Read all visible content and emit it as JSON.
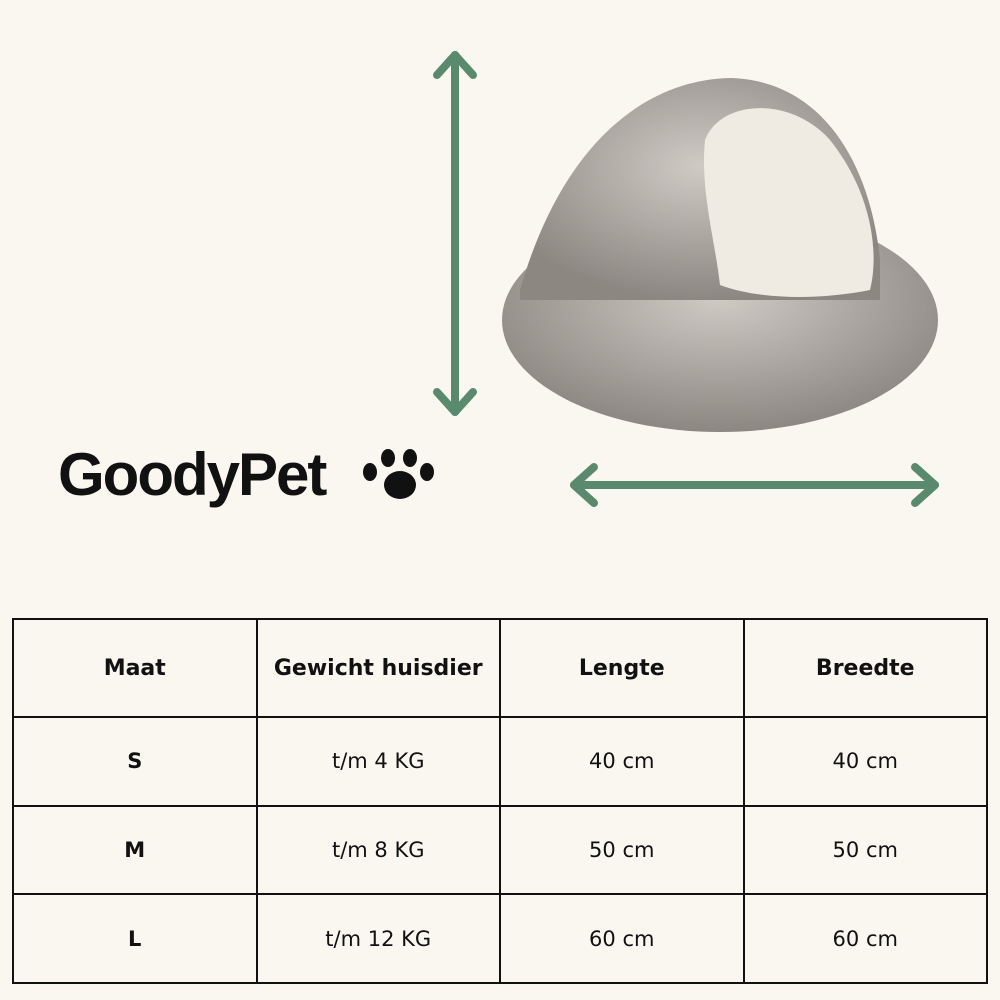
{
  "brand": "GoodyPet",
  "table": {
    "header": [
      "Maat",
      "Gewicht huisdier",
      "Lengte",
      "Breedte"
    ],
    "rows": [
      [
        "S",
        "t/m 4 KG",
        "40 cm",
        "40 cm"
      ],
      [
        "M",
        "t/m 8 KG",
        "50 cm",
        "50 cm"
      ],
      [
        "L",
        "t/m 12 KG",
        "60 cm",
        "60 cm"
      ]
    ]
  }
}
